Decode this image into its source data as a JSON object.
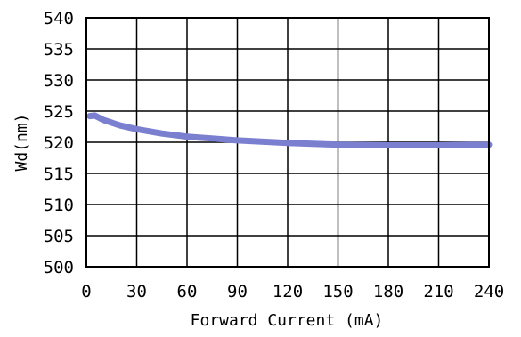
{
  "chart_data": {
    "type": "line",
    "xlabel": "Forward Current (mA)",
    "ylabel": "Wd(nm)",
    "xlim": [
      0,
      240
    ],
    "ylim": [
      500,
      540
    ],
    "x_ticks": [
      0,
      30,
      60,
      90,
      120,
      150,
      180,
      210,
      240
    ],
    "y_ticks": [
      500,
      505,
      510,
      515,
      520,
      525,
      530,
      535,
      540
    ],
    "grid": true,
    "series": [
      {
        "color": "#7b7fd0",
        "x": [
          2,
          5,
          10,
          20,
          30,
          45,
          60,
          90,
          120,
          150,
          180,
          210,
          240
        ],
        "y": [
          524.2,
          524.3,
          523.6,
          522.7,
          522.1,
          521.4,
          520.9,
          520.3,
          519.9,
          519.6,
          519.5,
          519.5,
          519.6
        ]
      }
    ]
  }
}
